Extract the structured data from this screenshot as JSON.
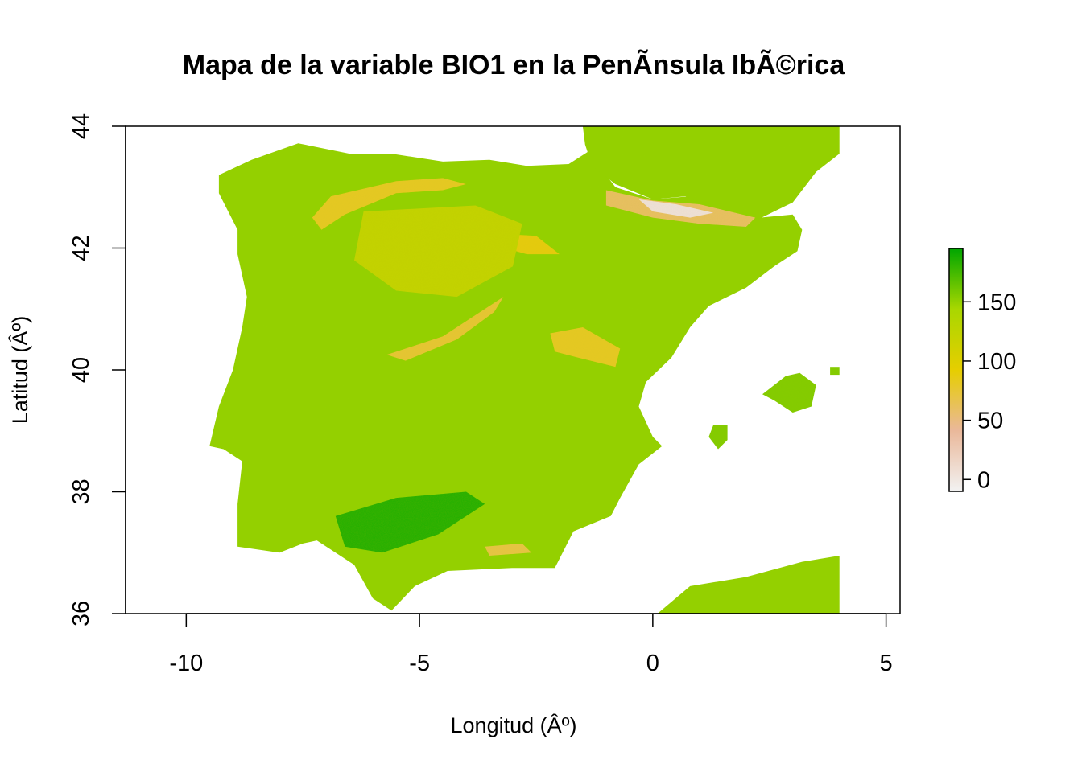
{
  "chart_data": {
    "type": "heatmap",
    "title": "Mapa de la variable BIO1 en la PenÃ­nsula IbÃ©rica",
    "xlabel": "Longitud (Âº)",
    "ylabel": "Latitud (Âº)",
    "xlim": [
      -11.3,
      5.3
    ],
    "ylim": [
      36,
      44
    ],
    "x_ticks": [
      -10,
      -5,
      0,
      5
    ],
    "x_tick_labels": [
      "-10",
      "-5",
      "0",
      "5"
    ],
    "y_ticks": [
      36,
      38,
      40,
      42,
      44
    ],
    "y_tick_labels": [
      "36",
      "38",
      "40",
      "42",
      "44"
    ],
    "legend": {
      "placement": "right",
      "range": [
        -10,
        195
      ],
      "ticks": [
        0,
        50,
        100,
        150
      ],
      "tick_labels": [
        "0",
        "50",
        "100",
        "150"
      ],
      "colors": [
        "#f2f2f2",
        "#eab89a",
        "#e6ce00",
        "#a9d700",
        "#00a600"
      ]
    },
    "colors": {
      "low": "#f2f2f2",
      "mid_low": "#eab89a",
      "mid": "#e6ce00",
      "mid_high": "#a9d700",
      "high": "#00a600"
    },
    "regions": [
      {
        "name": "peninsula",
        "value": 150,
        "polygon": [
          [
            -9.3,
            43.2
          ],
          [
            -8.6,
            43.45
          ],
          [
            -7.6,
            43.72
          ],
          [
            -6.5,
            43.55
          ],
          [
            -5.6,
            43.55
          ],
          [
            -4.5,
            43.42
          ],
          [
            -3.5,
            43.45
          ],
          [
            -2.7,
            43.35
          ],
          [
            -1.8,
            43.38
          ],
          [
            -1.35,
            43.6
          ],
          [
            -1.2,
            43.4
          ],
          [
            -0.8,
            43.0
          ],
          [
            0.0,
            42.8
          ],
          [
            0.8,
            42.85
          ],
          [
            1.6,
            42.6
          ],
          [
            2.3,
            42.5
          ],
          [
            3.0,
            42.55
          ],
          [
            3.2,
            42.3
          ],
          [
            3.1,
            41.95
          ],
          [
            2.6,
            41.7
          ],
          [
            2.0,
            41.35
          ],
          [
            1.2,
            41.05
          ],
          [
            0.8,
            40.7
          ],
          [
            0.4,
            40.2
          ],
          [
            -0.15,
            39.8
          ],
          [
            -0.3,
            39.4
          ],
          [
            0.0,
            38.9
          ],
          [
            0.2,
            38.75
          ],
          [
            -0.3,
            38.45
          ],
          [
            -0.7,
            37.9
          ],
          [
            -0.9,
            37.6
          ],
          [
            -1.7,
            37.35
          ],
          [
            -2.1,
            36.75
          ],
          [
            -3.0,
            36.75
          ],
          [
            -4.4,
            36.7
          ],
          [
            -5.1,
            36.45
          ],
          [
            -5.6,
            36.05
          ],
          [
            -6.0,
            36.25
          ],
          [
            -6.4,
            36.8
          ],
          [
            -7.2,
            37.2
          ],
          [
            -7.5,
            37.15
          ],
          [
            -8.0,
            37.0
          ],
          [
            -8.9,
            37.1
          ],
          [
            -8.9,
            37.8
          ],
          [
            -8.8,
            38.5
          ],
          [
            -9.2,
            38.7
          ],
          [
            -9.5,
            38.75
          ],
          [
            -9.3,
            39.4
          ],
          [
            -9.0,
            40.0
          ],
          [
            -8.8,
            40.7
          ],
          [
            -8.7,
            41.2
          ],
          [
            -8.9,
            41.9
          ],
          [
            -8.9,
            42.3
          ],
          [
            -9.3,
            42.9
          ]
        ]
      },
      {
        "name": "france",
        "value": 150,
        "polygon": [
          [
            -1.5,
            44.0
          ],
          [
            4.0,
            44.0
          ],
          [
            4.0,
            43.55
          ],
          [
            3.5,
            43.25
          ],
          [
            3.0,
            42.75
          ],
          [
            2.2,
            42.45
          ],
          [
            1.5,
            42.6
          ],
          [
            0.7,
            42.85
          ],
          [
            0.0,
            42.8
          ],
          [
            -0.8,
            43.05
          ],
          [
            -1.3,
            43.35
          ],
          [
            -1.45,
            43.7
          ]
        ]
      },
      {
        "name": "africa",
        "value": 150,
        "polygon": [
          [
            0.1,
            36.0
          ],
          [
            0.8,
            36.45
          ],
          [
            2.0,
            36.6
          ],
          [
            3.2,
            36.85
          ],
          [
            4.0,
            36.95
          ],
          [
            4.0,
            36.0
          ]
        ]
      },
      {
        "name": "mallorca",
        "value": 155,
        "polygon": [
          [
            2.35,
            39.6
          ],
          [
            2.85,
            39.9
          ],
          [
            3.15,
            39.95
          ],
          [
            3.5,
            39.75
          ],
          [
            3.4,
            39.4
          ],
          [
            3.0,
            39.3
          ],
          [
            2.6,
            39.5
          ]
        ]
      },
      {
        "name": "menorca",
        "value": 155,
        "polygon": [
          [
            3.8,
            40.05
          ],
          [
            4.0,
            40.05
          ],
          [
            4.0,
            39.92
          ],
          [
            3.8,
            39.92
          ]
        ]
      },
      {
        "name": "ibiza",
        "value": 155,
        "polygon": [
          [
            1.2,
            38.9
          ],
          [
            1.3,
            39.1
          ],
          [
            1.6,
            39.1
          ],
          [
            1.6,
            38.85
          ],
          [
            1.4,
            38.7
          ]
        ]
      },
      {
        "name": "pyrenees-high",
        "value": 60,
        "polygon": [
          [
            -1.0,
            42.95
          ],
          [
            0.0,
            42.78
          ],
          [
            1.0,
            42.72
          ],
          [
            2.2,
            42.5
          ],
          [
            2.0,
            42.35
          ],
          [
            1.0,
            42.4
          ],
          [
            0.0,
            42.5
          ],
          [
            -1.0,
            42.7
          ]
        ]
      },
      {
        "name": "pyrenees-peaks",
        "value": 5,
        "polygon": [
          [
            -0.3,
            42.8
          ],
          [
            0.5,
            42.72
          ],
          [
            1.3,
            42.58
          ],
          [
            0.8,
            42.5
          ],
          [
            0.0,
            42.6
          ]
        ]
      },
      {
        "name": "cantabrian-range",
        "value": 80,
        "polygon": [
          [
            -6.9,
            42.85
          ],
          [
            -5.5,
            43.1
          ],
          [
            -4.5,
            43.15
          ],
          [
            -4.0,
            43.05
          ],
          [
            -4.5,
            42.95
          ],
          [
            -5.5,
            42.9
          ],
          [
            -6.6,
            42.55
          ],
          [
            -7.1,
            42.3
          ],
          [
            -7.3,
            42.5
          ]
        ]
      },
      {
        "name": "iberian-system-north",
        "value": 85,
        "polygon": [
          [
            -3.6,
            42.25
          ],
          [
            -2.5,
            42.2
          ],
          [
            -2.0,
            41.9
          ],
          [
            -2.7,
            41.9
          ],
          [
            -3.4,
            42.05
          ]
        ]
      },
      {
        "name": "central-system",
        "value": 75,
        "polygon": [
          [
            -5.7,
            40.25
          ],
          [
            -4.5,
            40.55
          ],
          [
            -3.7,
            40.95
          ],
          [
            -3.2,
            41.2
          ],
          [
            -3.4,
            40.95
          ],
          [
            -4.2,
            40.5
          ],
          [
            -5.3,
            40.15
          ]
        ]
      },
      {
        "name": "iberian-system-south",
        "value": 80,
        "polygon": [
          [
            -2.2,
            40.6
          ],
          [
            -1.5,
            40.7
          ],
          [
            -0.7,
            40.35
          ],
          [
            -0.8,
            40.05
          ],
          [
            -1.6,
            40.2
          ],
          [
            -2.1,
            40.3
          ]
        ]
      },
      {
        "name": "sierra-nevada",
        "value": 70,
        "polygon": [
          [
            -3.6,
            37.1
          ],
          [
            -2.8,
            37.15
          ],
          [
            -2.6,
            37.0
          ],
          [
            -3.5,
            36.95
          ]
        ]
      },
      {
        "name": "meseta-north",
        "value": 120,
        "polygon": [
          [
            -6.2,
            42.6
          ],
          [
            -3.8,
            42.7
          ],
          [
            -2.8,
            42.4
          ],
          [
            -3.0,
            41.7
          ],
          [
            -4.2,
            41.2
          ],
          [
            -5.5,
            41.3
          ],
          [
            -6.4,
            41.8
          ]
        ]
      },
      {
        "name": "guadalquivir-valley",
        "value": 185,
        "polygon": [
          [
            -6.8,
            37.6
          ],
          [
            -5.5,
            37.9
          ],
          [
            -4.0,
            38.0
          ],
          [
            -3.6,
            37.8
          ],
          [
            -4.6,
            37.3
          ],
          [
            -5.8,
            37.0
          ],
          [
            -6.6,
            37.1
          ]
        ]
      }
    ]
  }
}
